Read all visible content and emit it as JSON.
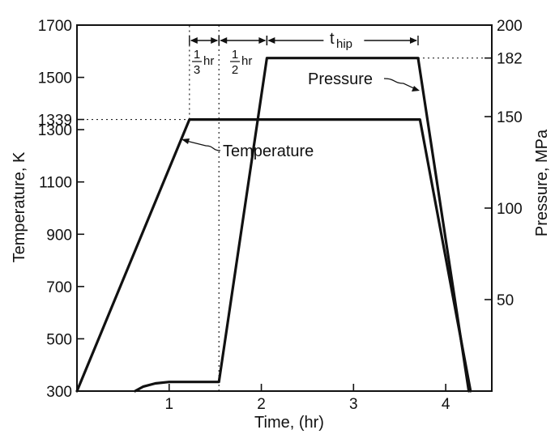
{
  "chart_data": {
    "type": "line",
    "xlabel": "Time, (hr)",
    "ylabel_left": "Temperature, K",
    "ylabel_right": "Pressure, MPa",
    "xlim": [
      0,
      4.5
    ],
    "ylim_left": [
      300,
      1700
    ],
    "ylim_right": [
      0,
      200
    ],
    "x_ticks": [
      {
        "value": 1,
        "label": "1"
      },
      {
        "value": 2,
        "label": "2"
      },
      {
        "value": 3,
        "label": "3"
      },
      {
        "value": 4,
        "label": "4"
      }
    ],
    "y_left_ticks": [
      {
        "value": 300,
        "label": "300"
      },
      {
        "value": 500,
        "label": "500"
      },
      {
        "value": 700,
        "label": "700"
      },
      {
        "value": 900,
        "label": "900"
      },
      {
        "value": 1100,
        "label": "1100"
      },
      {
        "value": 1300,
        "label": "1300"
      },
      {
        "value": 1339,
        "label": "1339"
      },
      {
        "value": 1500,
        "label": "1500"
      },
      {
        "value": 1700,
        "label": "1700"
      }
    ],
    "y_right_ticks": [
      {
        "value": 50,
        "label": "50"
      },
      {
        "value": 100,
        "label": "100"
      },
      {
        "value": 150,
        "label": "150"
      },
      {
        "value": 182,
        "label": "182"
      },
      {
        "value": 200,
        "label": "200"
      }
    ],
    "series": [
      {
        "name": "Temperature",
        "axis": "left",
        "points": [
          [
            0,
            300
          ],
          [
            1.22,
            1339
          ],
          [
            3.72,
            1339
          ],
          [
            4.27,
            300
          ]
        ]
      },
      {
        "name": "Pressure",
        "axis": "right",
        "points": [
          [
            0.63,
            0
          ],
          [
            0.72,
            2.5
          ],
          [
            0.85,
            4.2
          ],
          [
            1.0,
            5.0
          ],
          [
            1.54,
            5.0
          ],
          [
            2.06,
            182
          ],
          [
            3.7,
            182
          ],
          [
            4.25,
            0
          ]
        ]
      }
    ],
    "reference_lines": [
      {
        "orientation": "vertical",
        "x": 1.22,
        "from_y": 1339,
        "to_y": 1700
      },
      {
        "orientation": "vertical",
        "x": 1.54,
        "from_y": 300,
        "to_y": 1700
      },
      {
        "orientation": "horizontal",
        "y_left": 1339,
        "from_x": 0,
        "to_x": 1.22
      },
      {
        "orientation": "horizontal",
        "y_right": 182,
        "from_x": 3.7,
        "to_x": 4.5
      }
    ],
    "annotations": {
      "temperature_label": "Temperature",
      "pressure_label": "Pressure",
      "interval_1_num": "1",
      "interval_1_den": "3",
      "interval_1_unit": "hr",
      "interval_2_num": "1",
      "interval_2_den": "2",
      "interval_2_unit": "hr",
      "hold_label": "t",
      "hold_subscript": "hip"
    },
    "intervals": [
      {
        "name": "interval_1",
        "from_x": 1.22,
        "to_x": 1.54
      },
      {
        "name": "interval_2",
        "from_x": 1.54,
        "to_x": 2.06
      },
      {
        "name": "hold",
        "from_x": 2.06,
        "to_x": 3.7
      }
    ],
    "grid": false,
    "legend": "none"
  }
}
